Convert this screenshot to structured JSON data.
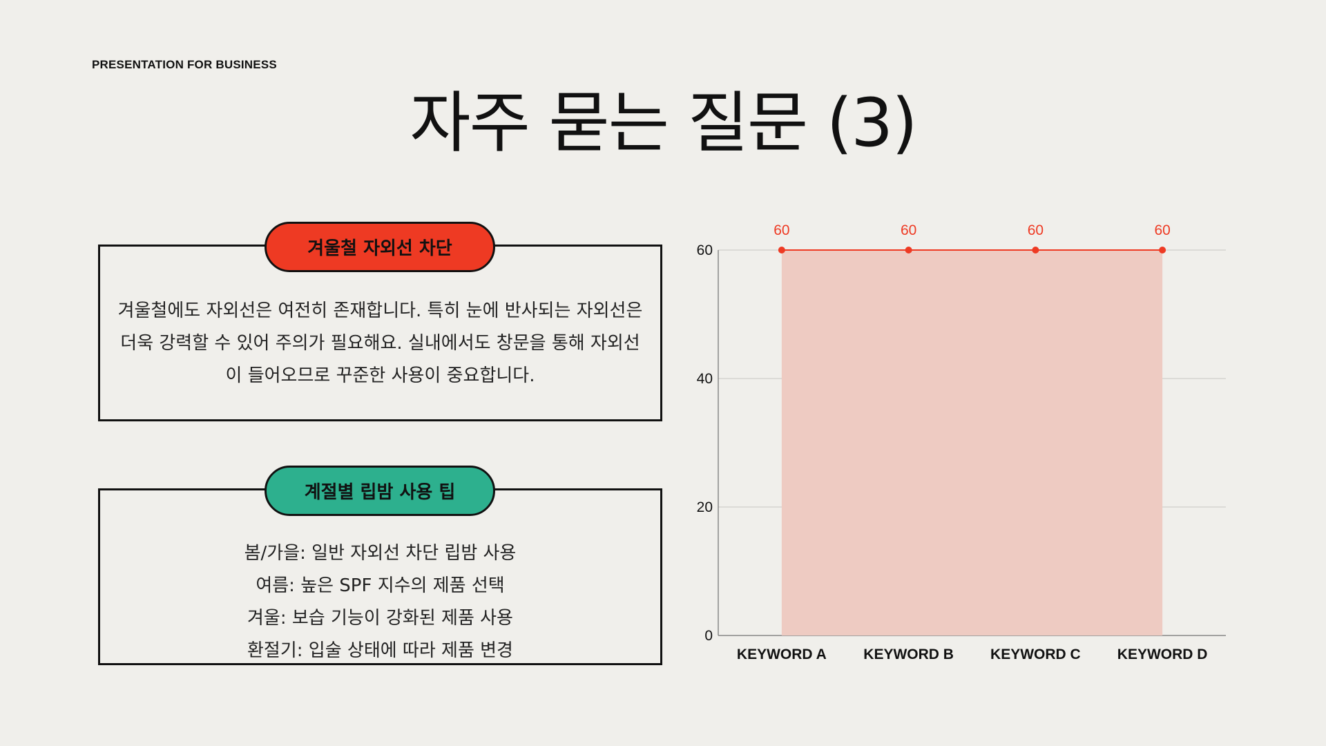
{
  "header": {
    "eyebrow": "PRESENTATION FOR BUSINESS",
    "title": "자주 묻는 질문 (3)"
  },
  "card1": {
    "label": "겨울철 자외선 차단",
    "label_color": "#ee3a23",
    "body": "겨울철에도 자외선은 여전히 존재합니다. 특히 눈에 반사되는 자외선은 더욱 강력할 수 있어 주의가 필요해요. 실내에서도 창문을 통해 자외선이 들어오므로 꾸준한 사용이 중요합니다."
  },
  "card2": {
    "label": "계절별 립밤 사용 팁",
    "label_color": "#2db08e",
    "tips": [
      "봄/가을: 일반 자외선 차단 립밤 사용",
      "여름: 높은 SPF 지수의 제품 선택",
      "겨울: 보습 기능이 강화된 제품 사용",
      "환절기: 입술 상태에 따라 제품 변경"
    ]
  },
  "chart_data": {
    "type": "area",
    "categories": [
      "KEYWORD A",
      "KEYWORD B",
      "KEYWORD C",
      "KEYWORD D"
    ],
    "series": [
      {
        "values": [
          60,
          60,
          60,
          60
        ]
      }
    ],
    "ylim": [
      0,
      60
    ],
    "yticks": [
      0,
      20,
      40,
      60
    ],
    "grid": true,
    "line_color": "#ee3a23",
    "fill_color": "#eecbc2",
    "label_color": "#ee3a23"
  }
}
